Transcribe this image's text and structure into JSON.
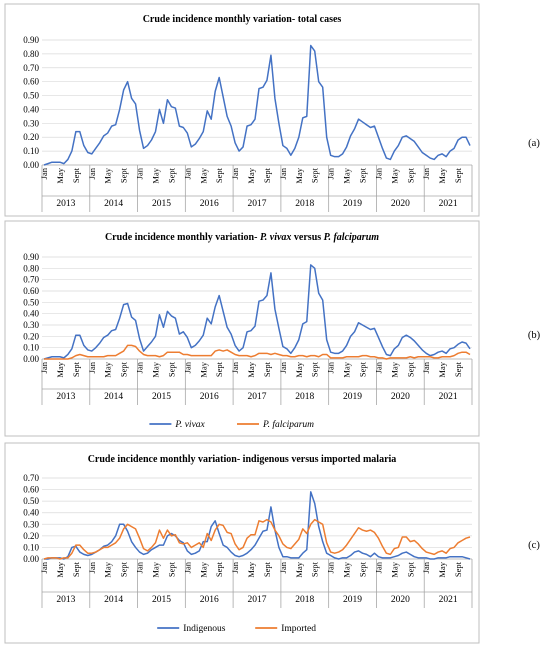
{
  "colors": {
    "blue": "#4472C4",
    "orange": "#ED7D31"
  },
  "chart_data": [
    {
      "type": "line",
      "panel_label": "(a)",
      "title": "Crude incidence monthly variation- total cases",
      "title_parts": [
        {
          "text": "Crude incidence monthly variation- total cases",
          "italic": false
        }
      ],
      "ylim": [
        0,
        0.9
      ],
      "yticks": [
        "0.00",
        "0.10",
        "0.20",
        "0.30",
        "0.40",
        "0.50",
        "0.60",
        "0.70",
        "0.80",
        "0.90"
      ],
      "month_labels": [
        "Jan",
        "May",
        "Sept"
      ],
      "years": [
        "2013",
        "2014",
        "2015",
        "2016",
        "2017",
        "2018",
        "2019",
        "2020",
        "2021"
      ],
      "grid": true,
      "legend": null,
      "series": [
        {
          "color": "#4472C4",
          "values": [
            0.0,
            0.01,
            0.02,
            0.02,
            0.02,
            0.01,
            0.04,
            0.1,
            0.24,
            0.24,
            0.14,
            0.09,
            0.08,
            0.12,
            0.16,
            0.21,
            0.23,
            0.28,
            0.29,
            0.4,
            0.54,
            0.6,
            0.48,
            0.44,
            0.25,
            0.12,
            0.14,
            0.18,
            0.24,
            0.4,
            0.3,
            0.47,
            0.42,
            0.41,
            0.28,
            0.27,
            0.23,
            0.13,
            0.15,
            0.19,
            0.24,
            0.39,
            0.33,
            0.53,
            0.63,
            0.49,
            0.35,
            0.28,
            0.16,
            0.1,
            0.13,
            0.28,
            0.29,
            0.33,
            0.55,
            0.56,
            0.61,
            0.79,
            0.48,
            0.3,
            0.14,
            0.12,
            0.07,
            0.12,
            0.2,
            0.34,
            0.35,
            0.86,
            0.82,
            0.6,
            0.56,
            0.2,
            0.07,
            0.06,
            0.06,
            0.08,
            0.13,
            0.21,
            0.26,
            0.33,
            0.31,
            0.29,
            0.27,
            0.28,
            0.2,
            0.12,
            0.05,
            0.04,
            0.1,
            0.14,
            0.2,
            0.21,
            0.19,
            0.17,
            0.13,
            0.09,
            0.07,
            0.05,
            0.04,
            0.07,
            0.08,
            0.06,
            0.1,
            0.12,
            0.18,
            0.2,
            0.2,
            0.14
          ]
        }
      ]
    },
    {
      "type": "line",
      "panel_label": "(b)",
      "title": "Crude incidence monthly variation- P. vivax versus P. falciparum",
      "title_parts": [
        {
          "text": "Crude incidence monthly variation- ",
          "italic": false
        },
        {
          "text": "P. vivax",
          "italic": true
        },
        {
          "text": " versus ",
          "italic": false
        },
        {
          "text": "P. falciparum",
          "italic": true
        }
      ],
      "ylim": [
        0,
        0.9
      ],
      "yticks": [
        "0.00",
        "0.10",
        "0.20",
        "0.30",
        "0.40",
        "0.50",
        "0.60",
        "0.70",
        "0.80",
        "0.90"
      ],
      "month_labels": [
        "Jan",
        "May",
        "Sept"
      ],
      "years": [
        "2013",
        "2014",
        "2015",
        "2016",
        "2017",
        "2018",
        "2019",
        "2020",
        "2021"
      ],
      "grid": true,
      "legend": "bottom",
      "series": [
        {
          "name": "P. vivax",
          "color": "#4472C4",
          "values": [
            0.0,
            0.01,
            0.02,
            0.02,
            0.02,
            0.01,
            0.04,
            0.09,
            0.21,
            0.21,
            0.12,
            0.08,
            0.07,
            0.1,
            0.14,
            0.19,
            0.21,
            0.25,
            0.26,
            0.36,
            0.48,
            0.49,
            0.37,
            0.34,
            0.18,
            0.07,
            0.11,
            0.15,
            0.2,
            0.39,
            0.28,
            0.42,
            0.38,
            0.36,
            0.22,
            0.24,
            0.19,
            0.1,
            0.12,
            0.16,
            0.21,
            0.36,
            0.31,
            0.46,
            0.56,
            0.42,
            0.28,
            0.22,
            0.12,
            0.07,
            0.1,
            0.24,
            0.25,
            0.29,
            0.51,
            0.52,
            0.56,
            0.76,
            0.44,
            0.27,
            0.11,
            0.09,
            0.05,
            0.1,
            0.17,
            0.31,
            0.33,
            0.83,
            0.8,
            0.58,
            0.52,
            0.17,
            0.06,
            0.05,
            0.05,
            0.07,
            0.12,
            0.2,
            0.24,
            0.32,
            0.3,
            0.28,
            0.26,
            0.27,
            0.19,
            0.11,
            0.04,
            0.03,
            0.09,
            0.12,
            0.19,
            0.21,
            0.19,
            0.16,
            0.12,
            0.08,
            0.05,
            0.03,
            0.04,
            0.06,
            0.07,
            0.05,
            0.09,
            0.1,
            0.13,
            0.15,
            0.14,
            0.09
          ]
        },
        {
          "name": "P. falciparum",
          "color": "#ED7D31",
          "values": [
            0.0,
            0.0,
            0.0,
            0.0,
            0.0,
            0.0,
            0.0,
            0.01,
            0.03,
            0.04,
            0.03,
            0.02,
            0.02,
            0.02,
            0.02,
            0.02,
            0.03,
            0.03,
            0.03,
            0.05,
            0.07,
            0.12,
            0.12,
            0.11,
            0.07,
            0.04,
            0.03,
            0.03,
            0.03,
            0.02,
            0.03,
            0.06,
            0.06,
            0.06,
            0.06,
            0.04,
            0.04,
            0.03,
            0.03,
            0.03,
            0.03,
            0.03,
            0.03,
            0.07,
            0.08,
            0.07,
            0.08,
            0.06,
            0.04,
            0.03,
            0.03,
            0.03,
            0.02,
            0.03,
            0.05,
            0.05,
            0.05,
            0.04,
            0.05,
            0.04,
            0.03,
            0.03,
            0.02,
            0.02,
            0.03,
            0.03,
            0.02,
            0.03,
            0.03,
            0.02,
            0.04,
            0.04,
            0.01,
            0.01,
            0.01,
            0.01,
            0.02,
            0.02,
            0.02,
            0.02,
            0.03,
            0.03,
            0.02,
            0.02,
            0.01,
            0.01,
            0.0,
            0.01,
            0.01,
            0.01,
            0.01,
            0.01,
            0.02,
            0.01,
            0.02,
            0.02,
            0.02,
            0.02,
            0.01,
            0.01,
            0.02,
            0.02,
            0.02,
            0.03,
            0.05,
            0.06,
            0.06,
            0.04
          ]
        }
      ]
    },
    {
      "type": "line",
      "panel_label": "(c)",
      "title": "Crude incidence monthly variation- indigenous versus imported malaria",
      "title_parts": [
        {
          "text": "Crude incidence monthly variation- indigenous versus imported malaria",
          "italic": false
        }
      ],
      "ylim": [
        0,
        0.7
      ],
      "yticks": [
        "0.00",
        "0.10",
        "0.20",
        "0.30",
        "0.40",
        "0.50",
        "0.60",
        "0.70"
      ],
      "month_labels": [
        "Jan",
        "May",
        "Sept"
      ],
      "years": [
        "2013",
        "2014",
        "2015",
        "2016",
        "2017",
        "2018",
        "2019",
        "2020",
        "2021"
      ],
      "grid": true,
      "legend": "bottom",
      "series": [
        {
          "name": "Indigenous",
          "color": "#4472C4",
          "values": [
            0.0,
            0.0,
            0.01,
            0.01,
            0.01,
            0.0,
            0.02,
            0.1,
            0.11,
            0.06,
            0.04,
            0.03,
            0.04,
            0.06,
            0.08,
            0.11,
            0.12,
            0.15,
            0.2,
            0.3,
            0.3,
            0.24,
            0.15,
            0.1,
            0.06,
            0.04,
            0.05,
            0.08,
            0.1,
            0.12,
            0.12,
            0.2,
            0.22,
            0.2,
            0.16,
            0.14,
            0.07,
            0.04,
            0.05,
            0.07,
            0.15,
            0.15,
            0.28,
            0.33,
            0.22,
            0.12,
            0.1,
            0.06,
            0.03,
            0.02,
            0.03,
            0.05,
            0.08,
            0.12,
            0.18,
            0.24,
            0.25,
            0.45,
            0.25,
            0.1,
            0.02,
            0.02,
            0.01,
            0.01,
            0.01,
            0.05,
            0.08,
            0.58,
            0.48,
            0.28,
            0.15,
            0.05,
            0.03,
            0.01,
            0.0,
            0.01,
            0.01,
            0.03,
            0.06,
            0.07,
            0.05,
            0.04,
            0.02,
            0.05,
            0.02,
            0.01,
            0.01,
            0.01,
            0.02,
            0.03,
            0.05,
            0.06,
            0.04,
            0.02,
            0.01,
            0.01,
            0.01,
            0.0,
            0.0,
            0.01,
            0.01,
            0.01,
            0.02,
            0.02,
            0.02,
            0.02,
            0.01,
            0.0
          ]
        },
        {
          "name": "Imported",
          "color": "#ED7D31",
          "values": [
            0.0,
            0.01,
            0.01,
            0.01,
            0.0,
            0.01,
            0.01,
            0.05,
            0.12,
            0.12,
            0.08,
            0.05,
            0.05,
            0.06,
            0.08,
            0.1,
            0.1,
            0.12,
            0.14,
            0.18,
            0.26,
            0.3,
            0.28,
            0.26,
            0.18,
            0.09,
            0.07,
            0.1,
            0.14,
            0.25,
            0.18,
            0.25,
            0.2,
            0.21,
            0.14,
            0.13,
            0.14,
            0.1,
            0.12,
            0.14,
            0.1,
            0.22,
            0.16,
            0.25,
            0.3,
            0.29,
            0.23,
            0.22,
            0.13,
            0.08,
            0.1,
            0.18,
            0.21,
            0.21,
            0.33,
            0.32,
            0.34,
            0.32,
            0.25,
            0.2,
            0.13,
            0.1,
            0.09,
            0.13,
            0.17,
            0.26,
            0.22,
            0.3,
            0.34,
            0.32,
            0.3,
            0.14,
            0.06,
            0.05,
            0.06,
            0.08,
            0.12,
            0.17,
            0.22,
            0.27,
            0.25,
            0.24,
            0.25,
            0.23,
            0.18,
            0.11,
            0.05,
            0.04,
            0.09,
            0.1,
            0.19,
            0.19,
            0.15,
            0.16,
            0.13,
            0.09,
            0.06,
            0.05,
            0.04,
            0.06,
            0.07,
            0.05,
            0.09,
            0.1,
            0.14,
            0.16,
            0.18,
            0.19
          ]
        }
      ]
    }
  ]
}
